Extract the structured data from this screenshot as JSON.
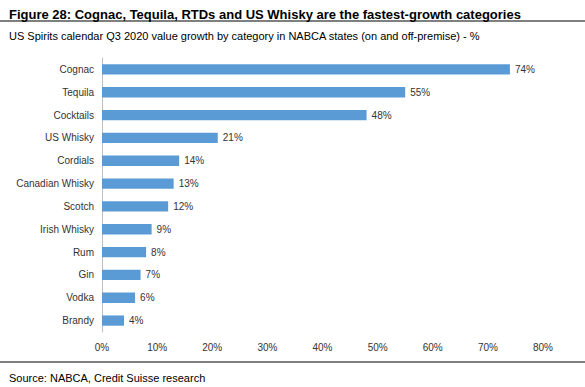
{
  "chart_data": {
    "type": "bar",
    "orientation": "horizontal",
    "title": "Figure 28: Cognac, Tequila, RTDs and US Whisky are the fastest-growth categories",
    "subtitle": "US Spirits calendar Q3 2020 value growth by category in NABCA states (on and off-premise) - %",
    "source": "Source: NABCA, Credit Suisse research",
    "categories": [
      "Cognac",
      "Tequila",
      "Cocktails",
      "US Whisky",
      "Cordials",
      "Canadian Whisky",
      "Scotch",
      "Irish Whisky",
      "Rum",
      "Gin",
      "Vodka",
      "Brandy"
    ],
    "values": [
      74,
      55,
      48,
      21,
      14,
      13,
      12,
      9,
      8,
      7,
      6,
      4
    ],
    "value_labels": [
      "74%",
      "55%",
      "48%",
      "21%",
      "14%",
      "13%",
      "12%",
      "9%",
      "8%",
      "7%",
      "6%",
      "4%"
    ],
    "data_labels": true,
    "color": "#5b9bd5",
    "xlim": [
      0,
      80
    ],
    "xticks": [
      {
        "value": 0,
        "label": "0%"
      },
      {
        "value": 10,
        "label": "10%"
      },
      {
        "value": 20,
        "label": "20%"
      },
      {
        "value": 30,
        "label": "30%"
      },
      {
        "value": 40,
        "label": "40%"
      },
      {
        "value": 50,
        "label": "50%"
      },
      {
        "value": 60,
        "label": "60%"
      },
      {
        "value": 70,
        "label": "70%"
      },
      {
        "value": 80,
        "label": "80%"
      }
    ],
    "grid": false
  }
}
